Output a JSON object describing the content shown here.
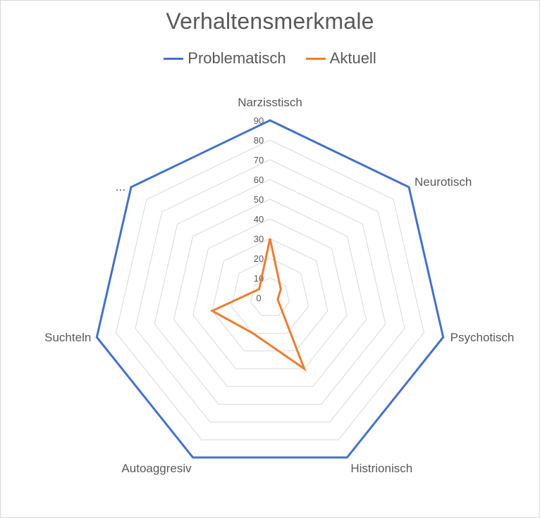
{
  "chart_data": {
    "type": "radar",
    "title": "Verhaltensmerkmale",
    "categories": [
      "Narzisstisch",
      "Neurotisch",
      "Psychotisch",
      "Histrionisch",
      "Autoaggresiv",
      "Suchteln",
      "..."
    ],
    "rlim": [
      0,
      90
    ],
    "ticks": [
      0,
      10,
      20,
      30,
      40,
      50,
      60,
      70,
      80,
      90
    ],
    "grid": true,
    "legend_position": "top",
    "series": [
      {
        "name": "Problematisch",
        "color": "#4472c4",
        "values": [
          90,
          90,
          90,
          90,
          90,
          90,
          90
        ]
      },
      {
        "name": "Aktuell",
        "color": "#ed7d31",
        "values": [
          30,
          7,
          4,
          40,
          20,
          30,
          7
        ]
      }
    ]
  }
}
